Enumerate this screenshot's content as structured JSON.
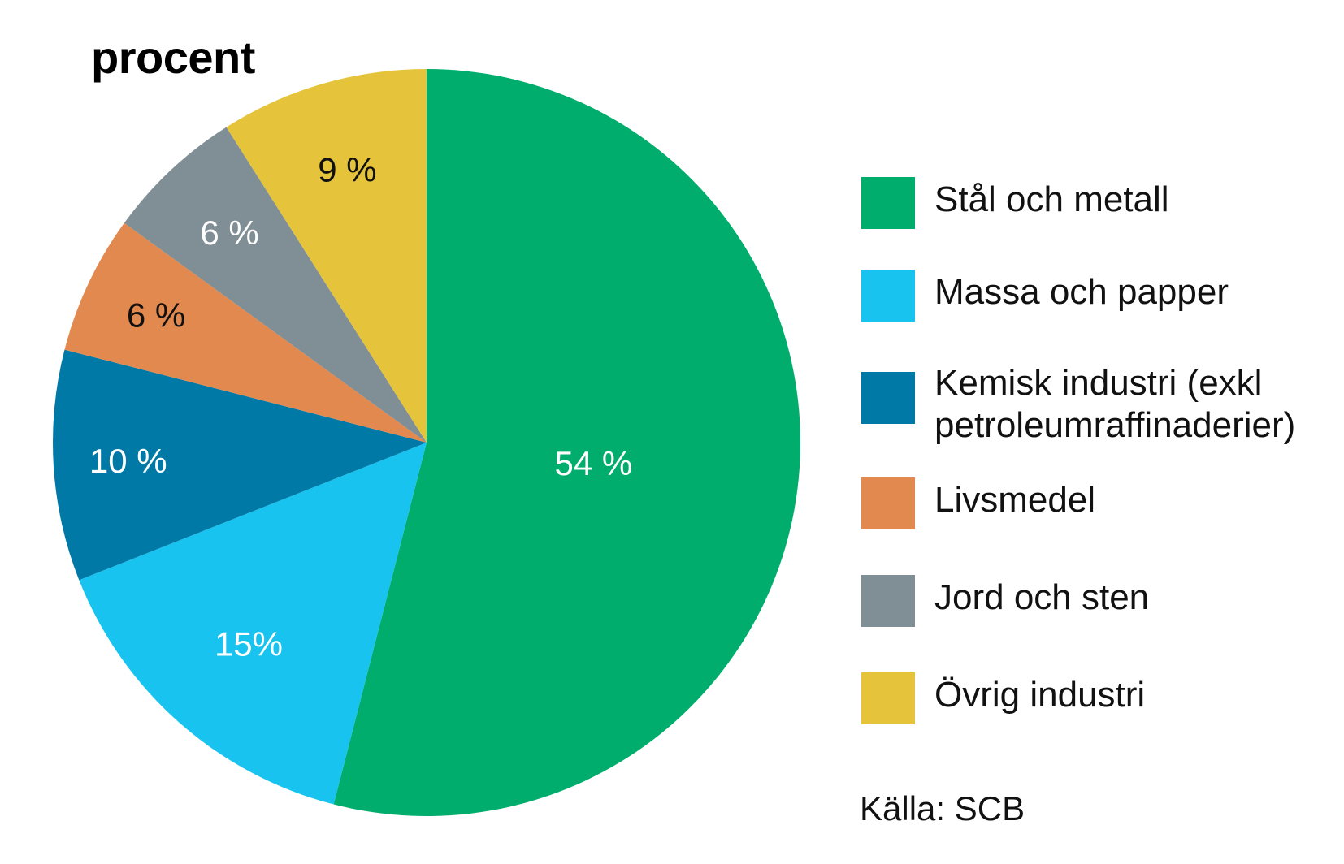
{
  "chart_data": {
    "type": "pie",
    "title": "procent",
    "slices": [
      {
        "name": "Stål och metall",
        "value": 54,
        "label": "54 %",
        "color": "#00ad6c",
        "label_color": "#ffffff"
      },
      {
        "name": "Massa och papper",
        "value": 15,
        "label": "15%",
        "color": "#19c3f0",
        "label_color": "#ffffff"
      },
      {
        "name": "Kemisk industri (exkl\npetroleumraffinaderier)",
        "value": 10,
        "label": "10 %",
        "color": "#0079a6",
        "label_color": "#ffffff"
      },
      {
        "name": "Livsmedel",
        "value": 6,
        "label": "6 %",
        "color": "#e2894f",
        "label_color": "#111111"
      },
      {
        "name": "Jord och sten",
        "value": 6,
        "label": "6 %",
        "color": "#808e95",
        "label_color": "#ffffff"
      },
      {
        "name": "Övrig industri",
        "value": 9,
        "label": "9 %",
        "color": "#e5c43c",
        "label_color": "#111111"
      }
    ],
    "legend_position": "right",
    "source": "Källa: SCB"
  }
}
